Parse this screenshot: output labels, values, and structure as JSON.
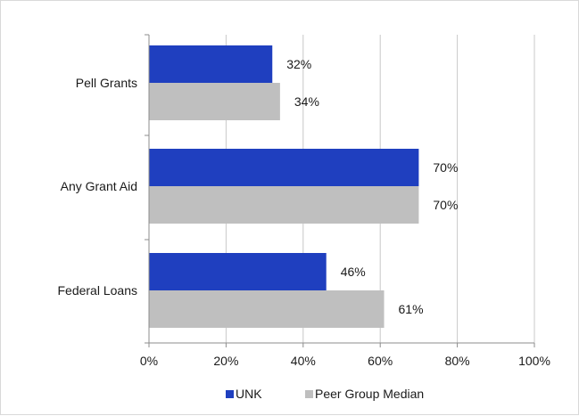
{
  "chart_data": {
    "type": "bar",
    "orientation": "horizontal",
    "categories": [
      "Pell Grants",
      "Any Grant Aid",
      "Federal Loans"
    ],
    "series": [
      {
        "name": "UNK",
        "values": [
          32,
          70,
          46
        ],
        "labels": [
          "32%",
          "70%",
          "46%"
        ],
        "color": "#1f3fbf"
      },
      {
        "name": "Peer Group Median",
        "values": [
          34,
          70,
          61
        ],
        "labels": [
          "34%",
          "70%",
          "61%"
        ],
        "color": "#bfbfbf"
      }
    ],
    "xlim": [
      0,
      100
    ],
    "ticks": [
      0,
      20,
      40,
      60,
      80,
      100
    ],
    "tick_labels": [
      "0%",
      "20%",
      "40%",
      "60%",
      "80%",
      "100%"
    ],
    "grid": true,
    "legend": "bottom",
    "gridline_color": "#c8c8c8"
  }
}
